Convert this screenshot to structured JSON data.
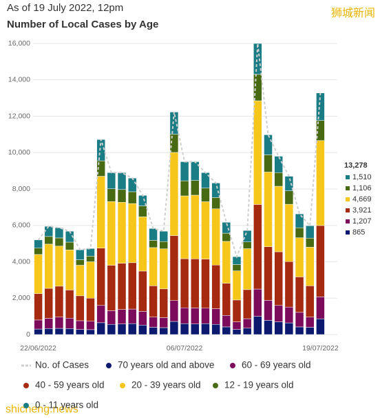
{
  "chart_data": {
    "type": "bar",
    "stacked": true,
    "title": "As of 19 July 2022, 12pm",
    "subtitle": "Number of Local Cases by Age",
    "watermarks": [
      "狮城新闻",
      "shicheng.news"
    ],
    "categories": [
      "22/06/2022",
      null,
      null,
      null,
      null,
      null,
      null,
      null,
      null,
      null,
      null,
      null,
      null,
      null,
      "06/07/2022",
      null,
      null,
      null,
      null,
      null,
      null,
      null,
      null,
      null,
      null,
      null,
      null,
      "19/07/2022"
    ],
    "ylim": [
      0,
      16000
    ],
    "yticks": [
      0,
      {
        "value": 2000,
        "label": "2,000"
      },
      {
        "value": 4000,
        "label": "4,000"
      },
      {
        "value": 6000,
        "label": "6,000"
      },
      {
        "value": 8000,
        "label": "8,000"
      },
      {
        "value": 10000,
        "label": "10,000"
      },
      {
        "value": 12000,
        "label": "12,000"
      },
      {
        "value": 14000,
        "label": "14,000"
      },
      {
        "value": 16000,
        "label": "16,000"
      }
    ],
    "grid": true,
    "series": [
      {
        "name": "No. of Cases",
        "type": "line",
        "dashed": true,
        "color": "#cfcfcf",
        "values": [
          5200,
          5950,
          5870,
          5680,
          4660,
          4730,
          10720,
          8900,
          8900,
          8600,
          7650,
          5830,
          5680,
          12230,
          9500,
          9500,
          8900,
          8330,
          6170,
          4280,
          5720,
          16000,
          10980,
          9800,
          8700,
          6630,
          5980,
          13278
        ],
        "value_labels": [
          null,
          null,
          null,
          null,
          null,
          null,
          null,
          null,
          null,
          null,
          null,
          null,
          null,
          null,
          null,
          null,
          null,
          null,
          null,
          null,
          null,
          null,
          null,
          null,
          null,
          null,
          null,
          "13,278"
        ]
      },
      {
        "name": "70 years old and above",
        "color": "#0b1a6e",
        "values": [
          300,
          330,
          340,
          330,
          280,
          270,
          650,
          560,
          580,
          600,
          520,
          400,
          380,
          720,
          600,
          580,
          600,
          560,
          420,
          280,
          350,
          1000,
          780,
          700,
          640,
          420,
          400,
          865
        ],
        "value_labels": [
          null,
          null,
          null,
          null,
          null,
          null,
          null,
          null,
          null,
          null,
          null,
          null,
          null,
          null,
          null,
          null,
          null,
          null,
          null,
          null,
          null,
          null,
          null,
          null,
          null,
          null,
          null,
          "865"
        ]
      },
      {
        "name": "60 - 69 years old",
        "color": "#7d0b5c",
        "values": [
          500,
          560,
          620,
          570,
          480,
          460,
          950,
          750,
          800,
          800,
          750,
          560,
          550,
          1150,
          870,
          880,
          850,
          860,
          630,
          420,
          520,
          1500,
          1100,
          900,
          870,
          800,
          560,
          1207
        ],
        "value_labels": [
          null,
          null,
          null,
          null,
          null,
          null,
          null,
          null,
          null,
          null,
          null,
          null,
          null,
          null,
          null,
          null,
          null,
          null,
          null,
          null,
          null,
          null,
          null,
          null,
          null,
          null,
          null,
          "1,207"
        ]
      },
      {
        "name": "40 - 59 years old",
        "color": "#a52a10",
        "values": [
          1450,
          1650,
          1700,
          1550,
          1370,
          1270,
          3150,
          2500,
          2540,
          2550,
          2220,
          1720,
          1580,
          3570,
          2700,
          2700,
          2700,
          2400,
          1770,
          1200,
          1600,
          4650,
          2950,
          2950,
          2500,
          1950,
          1720,
          3921
        ],
        "value_labels": [
          null,
          null,
          null,
          null,
          null,
          null,
          null,
          null,
          null,
          null,
          null,
          null,
          null,
          null,
          null,
          null,
          null,
          null,
          null,
          null,
          null,
          null,
          null,
          null,
          null,
          null,
          null,
          "3,921"
        ]
      },
      {
        "name": "20 - 39 years old",
        "color": "#f6c61a",
        "values": [
          2150,
          2430,
          2200,
          2200,
          1680,
          2000,
          3950,
          3500,
          3350,
          3250,
          2980,
          2100,
          2200,
          4570,
          3450,
          3500,
          3150,
          3090,
          2300,
          1600,
          2250,
          5700,
          4100,
          3600,
          3150,
          2150,
          2120,
          4669
        ],
        "value_labels": [
          null,
          null,
          null,
          null,
          null,
          null,
          null,
          null,
          null,
          null,
          null,
          null,
          null,
          null,
          null,
          null,
          null,
          null,
          null,
          null,
          null,
          null,
          null,
          null,
          null,
          null,
          null,
          "4,669"
        ]
      },
      {
        "name": "12 - 19 years old",
        "color": "#486a12",
        "values": [
          350,
          420,
          450,
          430,
          300,
          310,
          850,
          700,
          700,
          650,
          600,
          400,
          400,
          1000,
          830,
          810,
          750,
          620,
          450,
          350,
          370,
          1450,
          950,
          750,
          740,
          550,
          500,
          1106
        ],
        "value_labels": [
          null,
          null,
          null,
          null,
          null,
          null,
          null,
          null,
          null,
          null,
          null,
          null,
          null,
          null,
          null,
          null,
          null,
          null,
          null,
          null,
          null,
          null,
          null,
          null,
          null,
          null,
          null,
          "1,106"
        ]
      },
      {
        "name": "0 - 11 years old",
        "color": "#1a7c84",
        "values": [
          450,
          560,
          560,
          600,
          550,
          420,
          1170,
          890,
          930,
          750,
          580,
          650,
          570,
          1220,
          1050,
          1030,
          850,
          800,
          600,
          430,
          630,
          1700,
          1100,
          900,
          800,
          760,
          680,
          1510
        ],
        "value_labels": [
          null,
          null,
          null,
          null,
          null,
          null,
          null,
          null,
          null,
          null,
          null,
          null,
          null,
          null,
          null,
          null,
          null,
          null,
          null,
          null,
          null,
          null,
          null,
          null,
          null,
          null,
          null,
          "1,510"
        ]
      }
    ]
  }
}
